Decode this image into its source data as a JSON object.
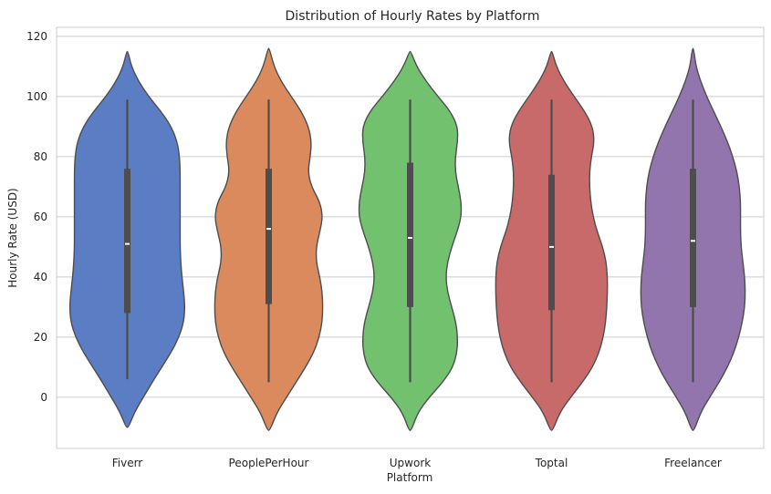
{
  "chart_data": {
    "type": "violin",
    "title": "Distribution of Hourly Rates by Platform",
    "xlabel": "Platform",
    "ylabel": "Hourly Rate (USD)",
    "ylim": [
      -17,
      123
    ],
    "yticks": [
      0,
      20,
      40,
      60,
      80,
      100,
      120
    ],
    "grid": true,
    "categories": [
      "Fiverr",
      "PeoplePerHour",
      "Upwork",
      "Toptal",
      "Freelancer"
    ],
    "colors": [
      "#5a7dc4",
      "#db8a5d",
      "#72c16e",
      "#c96a6a",
      "#9375ad"
    ],
    "violins": [
      {
        "min": 6,
        "q1": 28,
        "median": 51,
        "q3": 76,
        "max": 99,
        "kde_range": [
          -10,
          115
        ],
        "density_profile": [
          [
            -10,
            0.02
          ],
          [
            -5,
            0.12
          ],
          [
            0,
            0.27
          ],
          [
            5,
            0.42
          ],
          [
            10,
            0.58
          ],
          [
            15,
            0.74
          ],
          [
            20,
            0.87
          ],
          [
            25,
            0.95
          ],
          [
            30,
            0.97
          ],
          [
            35,
            0.95
          ],
          [
            40,
            0.92
          ],
          [
            45,
            0.9
          ],
          [
            50,
            0.89
          ],
          [
            55,
            0.89
          ],
          [
            60,
            0.89
          ],
          [
            65,
            0.89
          ],
          [
            70,
            0.89
          ],
          [
            75,
            0.89
          ],
          [
            80,
            0.88
          ],
          [
            85,
            0.84
          ],
          [
            90,
            0.74
          ],
          [
            95,
            0.57
          ],
          [
            100,
            0.36
          ],
          [
            105,
            0.19
          ],
          [
            110,
            0.07
          ],
          [
            115,
            0.01
          ]
        ]
      },
      {
        "min": 5,
        "q1": 31,
        "median": 56,
        "q3": 76,
        "max": 99,
        "kde_range": [
          -11,
          116
        ],
        "density_profile": [
          [
            -11,
            0.02
          ],
          [
            -5,
            0.14
          ],
          [
            0,
            0.3
          ],
          [
            5,
            0.46
          ],
          [
            10,
            0.62
          ],
          [
            15,
            0.76
          ],
          [
            20,
            0.85
          ],
          [
            25,
            0.9
          ],
          [
            30,
            0.91
          ],
          [
            35,
            0.9
          ],
          [
            40,
            0.86
          ],
          [
            45,
            0.8
          ],
          [
            50,
            0.8
          ],
          [
            55,
            0.86
          ],
          [
            60,
            0.91
          ],
          [
            65,
            0.86
          ],
          [
            70,
            0.72
          ],
          [
            75,
            0.66
          ],
          [
            80,
            0.7
          ],
          [
            85,
            0.72
          ],
          [
            90,
            0.67
          ],
          [
            95,
            0.55
          ],
          [
            100,
            0.38
          ],
          [
            105,
            0.21
          ],
          [
            110,
            0.09
          ],
          [
            116,
            0.01
          ]
        ]
      },
      {
        "min": 5,
        "q1": 30,
        "median": 53,
        "q3": 78,
        "max": 99,
        "kde_range": [
          -11,
          115
        ],
        "density_profile": [
          [
            -11,
            0.02
          ],
          [
            -5,
            0.13
          ],
          [
            0,
            0.32
          ],
          [
            5,
            0.55
          ],
          [
            10,
            0.72
          ],
          [
            15,
            0.79
          ],
          [
            20,
            0.8
          ],
          [
            25,
            0.77
          ],
          [
            30,
            0.7
          ],
          [
            35,
            0.63
          ],
          [
            40,
            0.6
          ],
          [
            45,
            0.63
          ],
          [
            50,
            0.7
          ],
          [
            55,
            0.79
          ],
          [
            60,
            0.86
          ],
          [
            65,
            0.86
          ],
          [
            70,
            0.81
          ],
          [
            75,
            0.76
          ],
          [
            80,
            0.76
          ],
          [
            85,
            0.8
          ],
          [
            90,
            0.8
          ],
          [
            95,
            0.68
          ],
          [
            100,
            0.47
          ],
          [
            105,
            0.27
          ],
          [
            110,
            0.11
          ],
          [
            115,
            0.01
          ]
        ]
      },
      {
        "min": 5,
        "q1": 29,
        "median": 50,
        "q3": 74,
        "max": 99,
        "kde_range": [
          -11,
          115
        ],
        "density_profile": [
          [
            -11,
            0.02
          ],
          [
            -5,
            0.14
          ],
          [
            0,
            0.32
          ],
          [
            5,
            0.52
          ],
          [
            10,
            0.69
          ],
          [
            15,
            0.8
          ],
          [
            20,
            0.87
          ],
          [
            25,
            0.91
          ],
          [
            30,
            0.93
          ],
          [
            35,
            0.94
          ],
          [
            40,
            0.94
          ],
          [
            45,
            0.92
          ],
          [
            50,
            0.86
          ],
          [
            55,
            0.77
          ],
          [
            60,
            0.7
          ],
          [
            65,
            0.66
          ],
          [
            70,
            0.64
          ],
          [
            75,
            0.64
          ],
          [
            80,
            0.67
          ],
          [
            85,
            0.72
          ],
          [
            90,
            0.69
          ],
          [
            95,
            0.56
          ],
          [
            100,
            0.38
          ],
          [
            105,
            0.21
          ],
          [
            110,
            0.08
          ],
          [
            115,
            0.01
          ]
        ]
      },
      {
        "min": 5,
        "q1": 30,
        "median": 52,
        "q3": 76,
        "max": 99,
        "kde_range": [
          -11,
          116
        ],
        "density_profile": [
          [
            -11,
            0.02
          ],
          [
            -5,
            0.13
          ],
          [
            0,
            0.28
          ],
          [
            5,
            0.44
          ],
          [
            10,
            0.58
          ],
          [
            15,
            0.69
          ],
          [
            20,
            0.77
          ],
          [
            25,
            0.83
          ],
          [
            30,
            0.87
          ],
          [
            35,
            0.88
          ],
          [
            40,
            0.87
          ],
          [
            45,
            0.84
          ],
          [
            50,
            0.81
          ],
          [
            55,
            0.8
          ],
          [
            60,
            0.8
          ],
          [
            65,
            0.8
          ],
          [
            70,
            0.78
          ],
          [
            75,
            0.74
          ],
          [
            80,
            0.67
          ],
          [
            85,
            0.58
          ],
          [
            90,
            0.47
          ],
          [
            95,
            0.35
          ],
          [
            100,
            0.23
          ],
          [
            105,
            0.13
          ],
          [
            110,
            0.05
          ],
          [
            116,
            0.01
          ]
        ]
      }
    ]
  }
}
